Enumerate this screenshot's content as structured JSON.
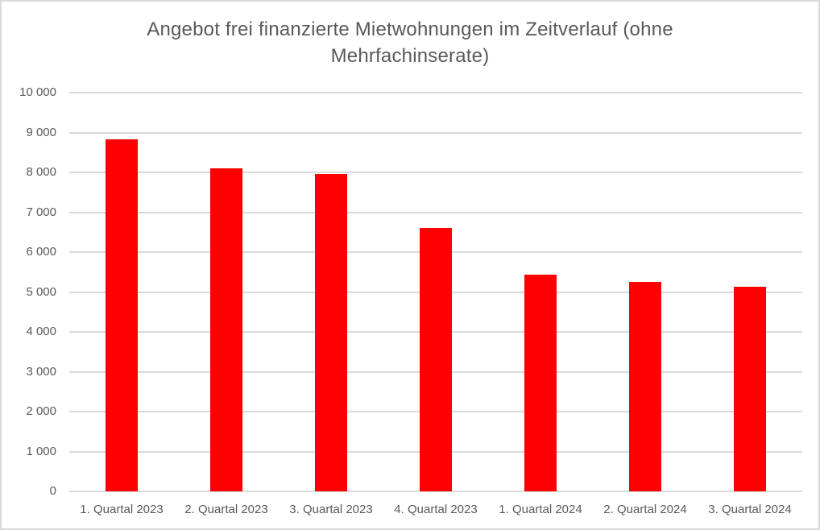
{
  "chart_data": {
    "type": "bar",
    "title": "Angebot frei finanzierte Mietwohnungen im Zeitverlauf (ohne Mehrfachinserate)",
    "title_lines": [
      "Angebot frei finanzierte Mietwohnungen im Zeitverlauf (ohne",
      "Mehrfachinserate)"
    ],
    "categories": [
      "1. Quartal 2023",
      "2. Quartal 2023",
      "3. Quartal 2023",
      "4. Quartal 2023",
      "1. Quartal 2024",
      "2. Quartal 2024",
      "3. Quartal 2024"
    ],
    "values": [
      8830,
      8100,
      7950,
      6610,
      5430,
      5250,
      5130
    ],
    "xlabel": "",
    "ylabel": "",
    "ylim": [
      0,
      10000
    ],
    "ytick_step": 1000,
    "ytick_labels": [
      "0",
      "1 000",
      "2 000",
      "3 000",
      "4 000",
      "5 000",
      "6 000",
      "7 000",
      "8 000",
      "9 000",
      "10 000"
    ],
    "grid": true,
    "legend": "none",
    "colors": {
      "bar": "#ff0000",
      "gridline": "#d9d9d9",
      "axis_line": "#d9d9d9",
      "text": "#595959",
      "border": "#d9d9d9",
      "background": "#ffffff"
    }
  }
}
